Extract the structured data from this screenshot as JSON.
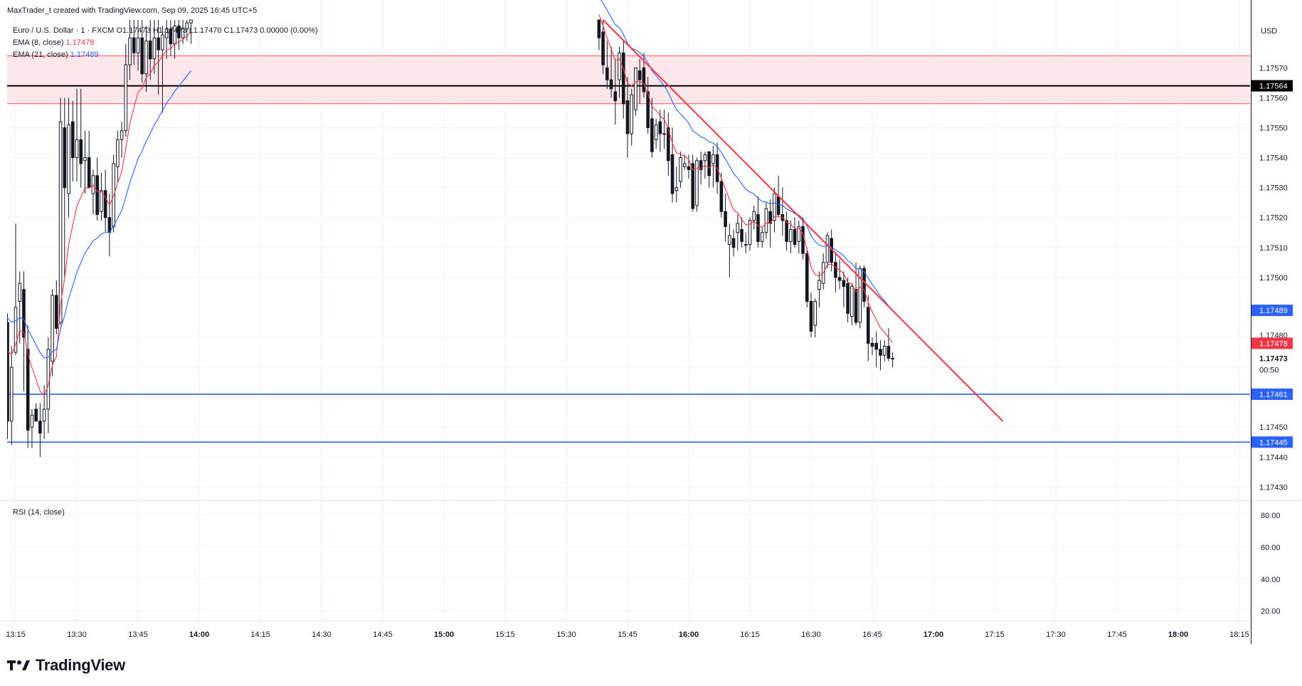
{
  "header": {
    "attribution": "MaxTrader_t created with TradingView.com, Sep 09, 2025 16:45 UTC+5",
    "symbol_line": "Euro / U.S. Dollar · 1 · FXCM  O1.17473  H1.17473  L1.17470  C1.17473  0.00000 (0.00%)",
    "ema8_label": "EMA (8, close)",
    "ema8_value": "1.17478",
    "ema21_label": "EMA (21, close)",
    "ema21_value": "1.17489",
    "rsi_label": "RSI (14, close)",
    "currency": "USD"
  },
  "brand": {
    "name": "TradingView",
    "logo_icon": "tradingview-logo-icon"
  },
  "colors": {
    "candle": "#131722",
    "ema8": "#f23645",
    "ema21": "#2962ff",
    "trendline": "#f23645",
    "support": "#2962ff",
    "resistance_zone_fill": "#fde7ea",
    "resistance_zone_border": "#f7525f",
    "black_line": "#000000",
    "grid": "#f0f3fa"
  },
  "chart_data": {
    "type": "candlestick",
    "title": "Euro / U.S. Dollar · 1 · FXCM",
    "ylim": [
      1.17427,
      1.17586
    ],
    "y_ticks": [
      "1.17570",
      "1.17560",
      "1.17550",
      "1.17540",
      "1.17530",
      "1.17520",
      "1.17510",
      "1.17500",
      "1.17450",
      "1.17440",
      "1.17430"
    ],
    "rsi_ylim": [
      14,
      89
    ],
    "rsi_ticks": [
      "80.00",
      "60.00",
      "40.00",
      "20.00"
    ],
    "x_ticks": [
      {
        "label": "13:15",
        "bold": false
      },
      {
        "label": "13:30",
        "bold": false
      },
      {
        "label": "13:45",
        "bold": false
      },
      {
        "label": "14:00",
        "bold": true
      },
      {
        "label": "14:15",
        "bold": false
      },
      {
        "label": "14:30",
        "bold": false
      },
      {
        "label": "14:45",
        "bold": false
      },
      {
        "label": "15:00",
        "bold": true
      },
      {
        "label": "15:15",
        "bold": false
      },
      {
        "label": "15:30",
        "bold": false
      },
      {
        "label": "15:45",
        "bold": false
      },
      {
        "label": "16:00",
        "bold": true
      },
      {
        "label": "16:15",
        "bold": false
      },
      {
        "label": "16:30",
        "bold": false
      },
      {
        "label": "16:45",
        "bold": false
      },
      {
        "label": "17:00",
        "bold": true
      },
      {
        "label": "17:15",
        "bold": false
      },
      {
        "label": "17:30",
        "bold": false
      },
      {
        "label": "17:45",
        "bold": false
      },
      {
        "label": "18:00",
        "bold": true
      },
      {
        "label": "18:15",
        "bold": false
      }
    ],
    "candles_early": [
      [
        1.17485,
        1.17488,
        1.17446,
        1.17452
      ],
      [
        1.17452,
        1.17477,
        1.17444,
        1.1747
      ],
      [
        1.17475,
        1.17518,
        1.17474,
        1.1749
      ],
      [
        1.17492,
        1.17502,
        1.17478,
        1.17498
      ],
      [
        1.17496,
        1.17502,
        1.17462,
        1.1748
      ],
      [
        1.17476,
        1.17484,
        1.17443,
        1.17449
      ],
      [
        1.1745,
        1.17456,
        1.17443,
        1.17454
      ],
      [
        1.17456,
        1.17458,
        1.17452,
        1.17452
      ],
      [
        1.17452,
        1.17458,
        1.1744,
        1.17448
      ],
      [
        1.17452,
        1.17464,
        1.17446,
        1.17456
      ],
      [
        1.17456,
        1.1748,
        1.17448,
        1.17476
      ],
      [
        1.17472,
        1.17496,
        1.17467,
        1.17494
      ],
      [
        1.17494,
        1.17499,
        1.17481,
        1.17483
      ],
      [
        1.17485,
        1.1756,
        1.17484,
        1.17552
      ],
      [
        1.1755,
        1.1756,
        1.175,
        1.1753
      ],
      [
        1.17528,
        1.1756,
        1.1752,
        1.17551
      ],
      [
        1.17552,
        1.17559,
        1.17532,
        1.1754
      ],
      [
        1.1754,
        1.17563,
        1.17532,
        1.17546
      ],
      [
        1.17546,
        1.17563,
        1.1753,
        1.17538
      ],
      [
        1.17539,
        1.17549,
        1.17528,
        1.1754
      ],
      [
        1.1754,
        1.17549,
        1.17532,
        1.1753
      ],
      [
        1.17528,
        1.17536,
        1.17521,
        1.17534
      ],
      [
        1.17534,
        1.1754,
        1.17519,
        1.17521
      ],
      [
        1.17522,
        1.17535,
        1.17519,
        1.17529
      ],
      [
        1.17529,
        1.17536,
        1.17515,
        1.1752
      ],
      [
        1.1752,
        1.17528,
        1.17507,
        1.17515
      ],
      [
        1.17517,
        1.17541,
        1.17515,
        1.17538
      ],
      [
        1.17537,
        1.17549,
        1.17532,
        1.17546
      ],
      [
        1.17546,
        1.17552,
        1.1754,
        1.17549
      ],
      [
        1.17549,
        1.17578,
        1.17547,
        1.17571
      ],
      [
        1.17571,
        1.17586,
        1.17566,
        1.1758
      ],
      [
        1.1758,
        1.17586,
        1.17571,
        1.17575
      ],
      [
        1.17575,
        1.17586,
        1.17569,
        1.1758
      ],
      [
        1.1758,
        1.17586,
        1.17565,
        1.17568
      ],
      [
        1.17568,
        1.17584,
        1.17562,
        1.17579
      ],
      [
        1.17579,
        1.17586,
        1.17566,
        1.17573
      ],
      [
        1.17573,
        1.17586,
        1.17568,
        1.1758
      ],
      [
        1.1758,
        1.17586,
        1.17561,
        1.17576
      ],
      [
        1.17576,
        1.17584,
        1.17555,
        1.17581
      ],
      [
        1.1758,
        1.17586,
        1.17573,
        1.17583
      ],
      [
        1.17583,
        1.17586,
        1.17574,
        1.17578
      ],
      [
        1.17578,
        1.17586,
        1.17573,
        1.17584
      ],
      [
        1.17584,
        1.17586,
        1.17576,
        1.1758
      ],
      [
        1.1758,
        1.17586,
        1.17578,
        1.17583
      ],
      [
        1.17583,
        1.17586,
        1.17579,
        1.17585
      ],
      [
        1.17585,
        1.17586,
        1.17578,
        1.17586
      ]
    ],
    "candles_late": [
      [
        1.17586,
        1.17586,
        1.17576,
        1.1758
      ],
      [
        1.17582,
        1.17586,
        1.17568,
        1.17571
      ],
      [
        1.1757,
        1.17579,
        1.17563,
        1.17566
      ],
      [
        1.17566,
        1.17577,
        1.1756,
        1.17563
      ],
      [
        1.17562,
        1.17573,
        1.17551,
        1.17559
      ],
      [
        1.17566,
        1.17577,
        1.1756,
        1.17575
      ],
      [
        1.17575,
        1.17579,
        1.17553,
        1.17558
      ],
      [
        1.17559,
        1.17567,
        1.1754,
        1.17548
      ],
      [
        1.17548,
        1.17563,
        1.17544,
        1.17561
      ],
      [
        1.17556,
        1.1757,
        1.17554,
        1.1757
      ],
      [
        1.17569,
        1.17573,
        1.17558,
        1.17566
      ],
      [
        1.1757,
        1.17575,
        1.1756,
        1.17562
      ],
      [
        1.17562,
        1.17567,
        1.17548,
        1.1755
      ],
      [
        1.17553,
        1.1756,
        1.1754,
        1.17542
      ],
      [
        1.17546,
        1.17553,
        1.17543,
        1.17551
      ],
      [
        1.17552,
        1.17556,
        1.17542,
        1.17548
      ],
      [
        1.17548,
        1.17556,
        1.17543,
        1.17548
      ],
      [
        1.1755,
        1.17555,
        1.17534,
        1.17539
      ],
      [
        1.17541,
        1.1755,
        1.17525,
        1.17528
      ],
      [
        1.17529,
        1.17537,
        1.17525,
        1.1753
      ],
      [
        1.17532,
        1.17542,
        1.1753,
        1.1754
      ],
      [
        1.17537,
        1.17541,
        1.17536,
        1.17538
      ],
      [
        1.17537,
        1.17541,
        1.17533,
        1.17536
      ],
      [
        1.17538,
        1.17541,
        1.17522,
        1.17523
      ],
      [
        1.17524,
        1.1754,
        1.17522,
        1.17539
      ],
      [
        1.17539,
        1.17542,
        1.17531,
        1.17536
      ],
      [
        1.17539,
        1.17542,
        1.17533,
        1.17541
      ],
      [
        1.17542,
        1.17542,
        1.1753,
        1.17534
      ],
      [
        1.17538,
        1.17544,
        1.1753,
        1.17541
      ],
      [
        1.17541,
        1.17545,
        1.17528,
        1.17532
      ],
      [
        1.17532,
        1.17535,
        1.1752,
        1.17522
      ],
      [
        1.17522,
        1.17528,
        1.17512,
        1.17517
      ],
      [
        1.17511,
        1.17518,
        1.175,
        1.17514
      ],
      [
        1.17513,
        1.17516,
        1.17507,
        1.1751
      ],
      [
        1.17515,
        1.17521,
        1.17509,
        1.17518
      ],
      [
        1.17516,
        1.1752,
        1.1751,
        1.17512
      ],
      [
        1.17511,
        1.17515,
        1.17508,
        1.17511
      ],
      [
        1.17511,
        1.1752,
        1.17509,
        1.17519
      ],
      [
        1.17519,
        1.17524,
        1.17516,
        1.17522
      ],
      [
        1.17521,
        1.17527,
        1.1751,
        1.17512
      ],
      [
        1.17512,
        1.17517,
        1.1751,
        1.17515
      ],
      [
        1.17515,
        1.17525,
        1.17513,
        1.17523
      ],
      [
        1.17522,
        1.17526,
        1.1751,
        1.17518
      ],
      [
        1.17519,
        1.1753,
        1.17515,
        1.17528
      ],
      [
        1.17527,
        1.17534,
        1.1752,
        1.17521
      ],
      [
        1.17521,
        1.1753,
        1.17514,
        1.17519
      ],
      [
        1.17519,
        1.17522,
        1.17509,
        1.17512
      ],
      [
        1.17512,
        1.17519,
        1.17508,
        1.17516
      ],
      [
        1.17516,
        1.1752,
        1.1751,
        1.17511
      ],
      [
        1.17512,
        1.17519,
        1.17508,
        1.17517
      ],
      [
        1.17517,
        1.1752,
        1.17506,
        1.17508
      ],
      [
        1.17508,
        1.1751,
        1.1749,
        1.17492
      ],
      [
        1.17492,
        1.17495,
        1.1748,
        1.17482
      ],
      [
        1.17484,
        1.17493,
        1.1748,
        1.17492
      ],
      [
        1.17496,
        1.17502,
        1.1749,
        1.17499
      ],
      [
        1.17498,
        1.17508,
        1.17496,
        1.17505
      ],
      [
        1.17505,
        1.17515,
        1.17503,
        1.17514
      ],
      [
        1.17513,
        1.17516,
        1.17502,
        1.17505
      ],
      [
        1.17505,
        1.17508,
        1.17495,
        1.175
      ],
      [
        1.175,
        1.17506,
        1.17496,
        1.17499
      ],
      [
        1.17499,
        1.17502,
        1.1749,
        1.17497
      ],
      [
        1.17498,
        1.175,
        1.17485,
        1.17488
      ],
      [
        1.17487,
        1.17498,
        1.17484,
        1.17497
      ],
      [
        1.17496,
        1.17505,
        1.17484,
        1.17485
      ],
      [
        1.17485,
        1.17504,
        1.17483,
        1.17503
      ],
      [
        1.17503,
        1.17504,
        1.1749,
        1.17492
      ],
      [
        1.1749,
        1.17494,
        1.17472,
        1.17478
      ],
      [
        1.17478,
        1.1748,
        1.17474,
        1.17477
      ],
      [
        1.17478,
        1.17482,
        1.1747,
        1.17476
      ],
      [
        1.17476,
        1.17479,
        1.17469,
        1.17474
      ],
      [
        1.17474,
        1.17479,
        1.17472,
        1.17477
      ],
      [
        1.17477,
        1.17483,
        1.17472,
        1.17473
      ],
      [
        1.17473,
        1.17475,
        1.1747,
        1.17473
      ]
    ],
    "drawings": {
      "zone_top": 1.17574,
      "zone_bottom": 1.17558,
      "black_level": 1.17564,
      "support_levels": [
        1.17461,
        1.17445
      ],
      "trendline": [
        {
          "time": "15:39",
          "price": 1.17586
        },
        {
          "time": "17:17",
          "price": 1.17452
        }
      ]
    },
    "price_labels": {
      "black": "1.17564",
      "ema21": "1.17489",
      "ema8": "1.17478",
      "last": "1.17473",
      "countdown": "00:50",
      "support_upper": "1.17461",
      "support_lower": "1.17445",
      "hidden": "1.17480"
    }
  }
}
